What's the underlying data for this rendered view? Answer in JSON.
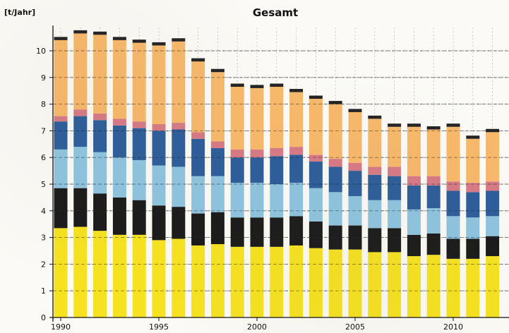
{
  "chart_data": {
    "type": "bar",
    "stacked": true,
    "title": "Gesamt",
    "ylabel": "[t/Jahr]",
    "xlabel": "",
    "ylim": [
      0,
      11
    ],
    "yticks": [
      0,
      1,
      2,
      3,
      4,
      5,
      6,
      7,
      8,
      9,
      10
    ],
    "xtick_labels": [
      "1990",
      "1995",
      "2000",
      "2005",
      "2010"
    ],
    "categories": [
      "1990",
      "1991",
      "1992",
      "1993",
      "1994",
      "1995",
      "1996",
      "1997",
      "1998",
      "1999",
      "2000",
      "2001",
      "2002",
      "2003",
      "2004",
      "2005",
      "2006",
      "2007",
      "2008",
      "2009",
      "2010",
      "2011",
      "2012"
    ],
    "grid": true,
    "legend": "none",
    "series": [
      {
        "color": "#f6e221",
        "values": [
          3.35,
          3.4,
          3.25,
          3.1,
          3.1,
          2.9,
          2.95,
          2.7,
          2.75,
          2.65,
          2.65,
          2.65,
          2.7,
          2.6,
          2.55,
          2.55,
          2.45,
          2.45,
          2.3,
          2.35,
          2.2,
          2.2,
          2.3
        ]
      },
      {
        "color": "#1b1b1b",
        "values": [
          1.5,
          1.45,
          1.4,
          1.4,
          1.3,
          1.3,
          1.2,
          1.2,
          1.2,
          1.1,
          1.1,
          1.1,
          1.1,
          1.0,
          0.9,
          0.9,
          0.9,
          0.9,
          0.8,
          0.8,
          0.75,
          0.75,
          0.75
        ]
      },
      {
        "color": "#8fc4df",
        "values": [
          1.45,
          1.55,
          1.55,
          1.5,
          1.5,
          1.5,
          1.5,
          1.4,
          1.35,
          1.3,
          1.3,
          1.25,
          1.25,
          1.25,
          1.25,
          1.1,
          1.05,
          1.05,
          0.95,
          0.95,
          0.85,
          0.8,
          0.75
        ]
      },
      {
        "color": "#2d5d9a",
        "values": [
          1.05,
          1.15,
          1.2,
          1.2,
          1.2,
          1.3,
          1.4,
          1.4,
          1.05,
          0.95,
          0.95,
          1.05,
          1.05,
          1.0,
          0.95,
          0.95,
          0.95,
          0.9,
          0.9,
          0.85,
          0.95,
          0.95,
          0.95
        ]
      },
      {
        "color": "#d77a86",
        "values": [
          0.2,
          0.25,
          0.25,
          0.25,
          0.25,
          0.25,
          0.25,
          0.25,
          0.25,
          0.3,
          0.3,
          0.3,
          0.3,
          0.25,
          0.3,
          0.3,
          0.3,
          0.35,
          0.35,
          0.35,
          0.35,
          0.35,
          0.35
        ]
      },
      {
        "color": "#f7b86a",
        "values": [
          2.85,
          2.85,
          2.95,
          2.95,
          2.95,
          2.95,
          3.05,
          2.65,
          2.6,
          2.35,
          2.3,
          2.3,
          2.05,
          2.1,
          2.05,
          1.9,
          1.8,
          1.5,
          1.85,
          1.75,
          2.05,
          1.65,
          1.85
        ]
      },
      {
        "color": "#242424",
        "values": [
          0.12,
          0.12,
          0.12,
          0.12,
          0.12,
          0.12,
          0.12,
          0.12,
          0.12,
          0.12,
          0.12,
          0.12,
          0.12,
          0.12,
          0.12,
          0.12,
          0.12,
          0.12,
          0.12,
          0.12,
          0.12,
          0.12,
          0.12
        ]
      }
    ]
  }
}
